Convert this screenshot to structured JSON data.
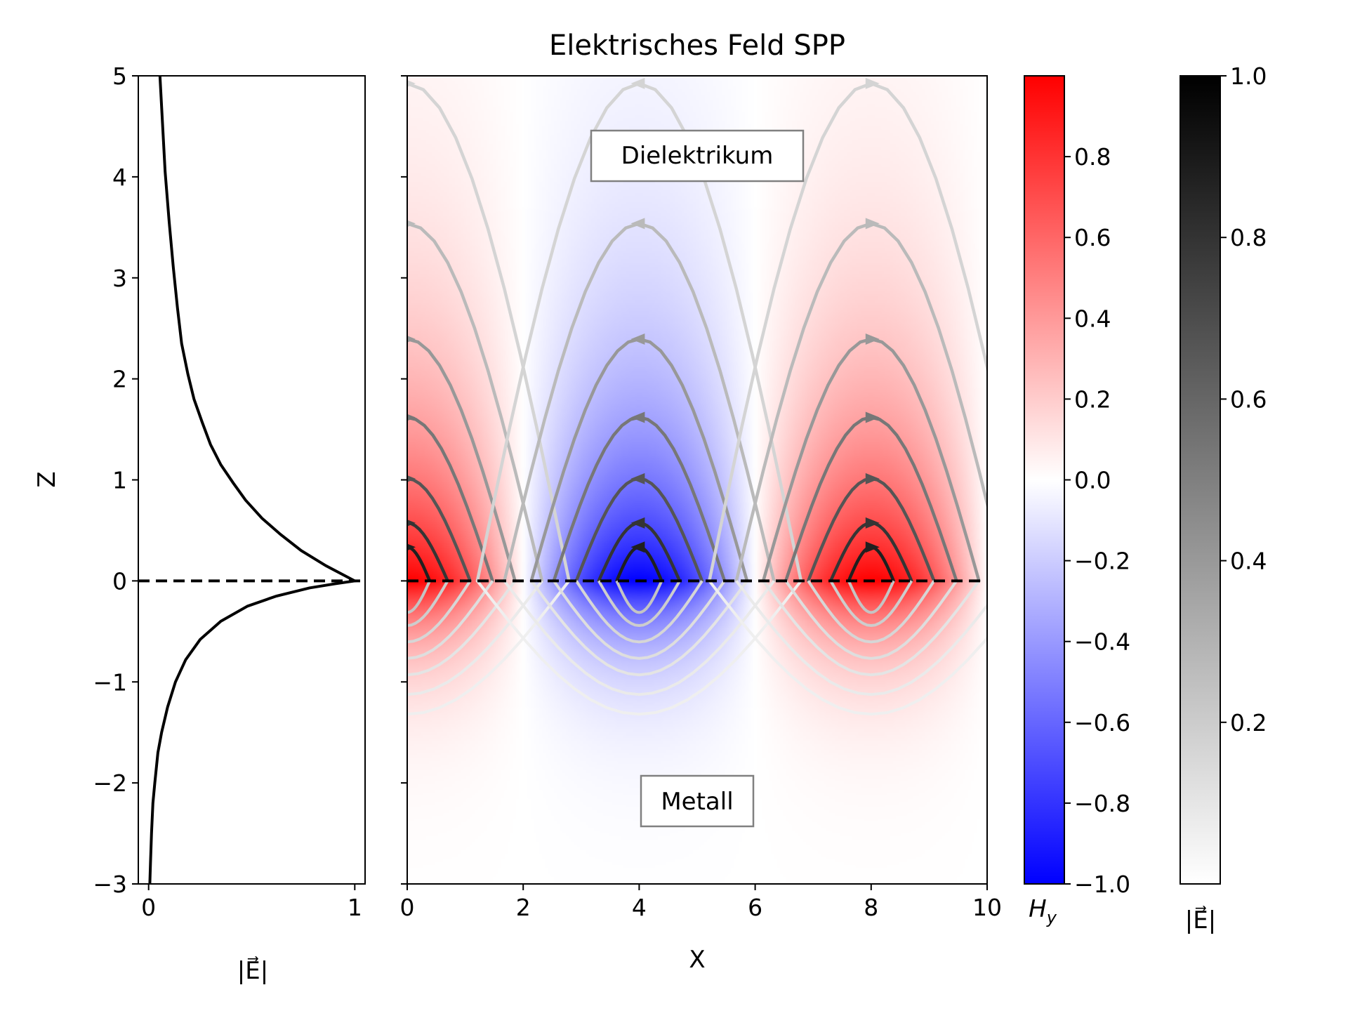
{
  "chart_data": [
    {
      "type": "line",
      "panel": "left-profile",
      "title": "",
      "xlabel": "|E⃗|",
      "ylabel": "Z",
      "xlim": [
        -0.05,
        1.05
      ],
      "ylim": [
        -3,
        5
      ],
      "x_ticks": [
        "0",
        "1"
      ],
      "y_ticks": [
        "−3",
        "−2",
        "−1",
        "0",
        "1",
        "2",
        "3",
        "4",
        "5"
      ],
      "series": [
        {
          "x": [
            0.006,
            0.009,
            0.014,
            0.021,
            0.03,
            0.045,
            0.063,
            0.092,
            0.13,
            0.18,
            0.25,
            0.35,
            0.48,
            0.62,
            0.78,
            0.9,
            1.0,
            0.86,
            0.74,
            0.64,
            0.55,
            0.47,
            0.41,
            0.35,
            0.3,
            0.26,
            0.22,
            0.19,
            0.16,
            0.14,
            0.12,
            0.1,
            0.08,
            0.055
          ],
          "y": [
            -3.0,
            -2.8,
            -2.5,
            -2.2,
            -2.0,
            -1.7,
            -1.5,
            -1.25,
            -1.0,
            -0.78,
            -0.58,
            -0.4,
            -0.25,
            -0.15,
            -0.07,
            -0.03,
            0.0,
            0.15,
            0.3,
            0.46,
            0.62,
            0.8,
            0.97,
            1.15,
            1.35,
            1.57,
            1.8,
            2.05,
            2.35,
            2.7,
            3.1,
            3.55,
            4.05,
            5.0
          ]
        }
      ],
      "reference_line": {
        "y": 0,
        "style": "dashed"
      }
    },
    {
      "type": "heatmap",
      "panel": "main-field",
      "title": "Elektrisches Feld SPP",
      "xlabel": "X",
      "ylabel": "",
      "xlim": [
        0,
        10
      ],
      "ylim": [
        -3,
        5
      ],
      "x_ticks": [
        "0",
        "2",
        "4",
        "6",
        "8",
        "10"
      ],
      "field": {
        "formula": "Hy = cos(2πx/8) · exp(−z/1.6) for z ≥ 0, exp(z/0.55) for z < 0",
        "period_x": 8,
        "decay_dielectric": 1.6,
        "decay_metal": 0.55,
        "colormap": "bwr",
        "streamlines": "electric field lines, greyscale by |E⃗|"
      },
      "annotations": [
        "Dielektrikum",
        "Metall"
      ],
      "reference_line": {
        "y": 0,
        "style": "dashed"
      }
    }
  ],
  "colorbars": [
    {
      "label": "H_y",
      "label_main": "H",
      "label_sub": "y",
      "range": [
        -1.0,
        1.0
      ],
      "ticks": [
        "−1.0",
        "−0.8",
        "−0.6",
        "−0.4",
        "−0.2",
        "0.0",
        "0.2",
        "0.4",
        "0.6",
        "0.8"
      ],
      "colors": {
        "low": "#0000ff",
        "mid": "#ffffff",
        "high": "#ff0000"
      }
    },
    {
      "label": "|E⃗|",
      "range": [
        0.0,
        1.0
      ],
      "ticks": [
        "0.2",
        "0.4",
        "0.6",
        "0.8",
        "1.0"
      ],
      "colors": {
        "low": "#ffffff",
        "high": "#000000"
      }
    }
  ],
  "labels": {
    "title": "Elektrisches Feld SPP",
    "left_xlabel": "|E⃗|",
    "left_ylabel": "Z",
    "main_xlabel": "X",
    "dielectric_label": "Dielektrikum",
    "metal_label": "Metall",
    "cbar_e_label": "|E⃗|"
  }
}
